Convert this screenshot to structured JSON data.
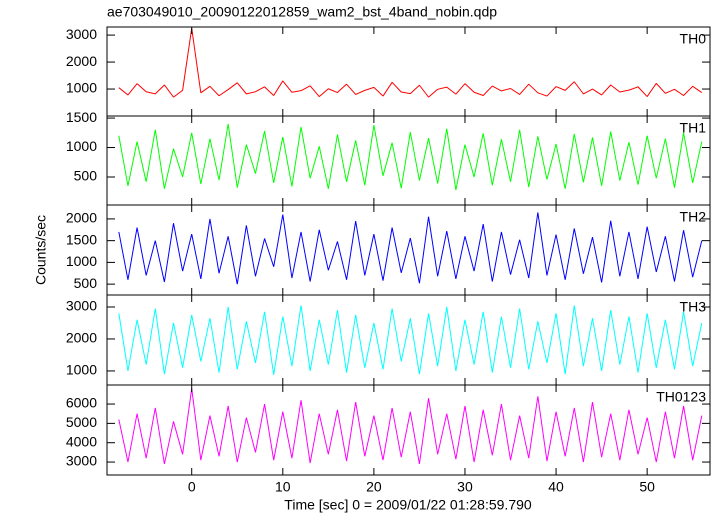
{
  "title": "ae703049010_20090122012859_wam2_bst_4band_nobin.qdp",
  "ylabel": "Counts/sec",
  "xlabel": "Time [sec] 0 = 2009/01/22 01:28:59.790",
  "chart_data": [
    {
      "type": "line",
      "x": [
        -8,
        -7,
        -6,
        -5,
        -4,
        -3,
        -2,
        -1,
        0,
        1,
        2,
        3,
        4,
        5,
        6,
        7,
        8,
        9,
        10,
        11,
        12,
        13,
        14,
        15,
        16,
        17,
        18,
        19,
        20,
        21,
        22,
        23,
        24,
        25,
        26,
        27,
        28,
        29,
        30,
        31,
        32,
        33,
        34,
        35,
        36,
        37,
        38,
        39,
        40,
        41,
        42,
        43,
        44,
        45,
        46,
        47,
        48,
        49,
        50,
        51,
        52,
        53,
        54,
        55,
        56
      ],
      "series": [
        {
          "name": "TH0",
          "color": "#ff0000",
          "values": [
            1050,
            780,
            1200,
            900,
            820,
            1150,
            700,
            950,
            3250,
            860,
            1100,
            750,
            980,
            1230,
            820,
            900,
            1080,
            760,
            1300,
            880,
            940,
            1120,
            720,
            1010,
            870,
            1180,
            800,
            950,
            1060,
            740,
            1250,
            890,
            830,
            1140,
            700,
            990,
            1070,
            810,
            1200,
            880,
            760,
            1110,
            930,
            1020,
            800,
            1180,
            860,
            740,
            1090,
            950,
            1270,
            820,
            1000,
            780,
            1150,
            890,
            960,
            1080,
            720,
            1210,
            840,
            990,
            760,
            1100,
            870
          ]
        }
      ],
      "ylim": [
        0,
        3300
      ],
      "yticks": [
        1000,
        2000,
        3000
      ]
    },
    {
      "type": "line",
      "x": [
        -8,
        -7,
        -6,
        -5,
        -4,
        -3,
        -2,
        -1,
        0,
        1,
        2,
        3,
        4,
        5,
        6,
        7,
        8,
        9,
        10,
        11,
        12,
        13,
        14,
        15,
        16,
        17,
        18,
        19,
        20,
        21,
        22,
        23,
        24,
        25,
        26,
        27,
        28,
        29,
        30,
        31,
        32,
        33,
        34,
        35,
        36,
        37,
        38,
        39,
        40,
        41,
        42,
        43,
        44,
        45,
        46,
        47,
        48,
        49,
        50,
        51,
        52,
        53,
        54,
        55,
        56
      ],
      "series": [
        {
          "name": "TH1",
          "color": "#00ff00",
          "values": [
            1200,
            350,
            1100,
            420,
            1300,
            300,
            980,
            500,
            1250,
            380,
            1150,
            450,
            1400,
            320,
            1050,
            560,
            1280,
            400,
            1180,
            340,
            1350,
            480,
            1020,
            300,
            1220,
            420,
            1120,
            360,
            1380,
            520,
            1080,
            310,
            1260,
            440,
            1160,
            390,
            1320,
            280,
            1050,
            500,
            1240,
            360,
            1140,
            420,
            1300,
            330,
            1190,
            460,
            1060,
            300,
            1230,
            410,
            1170,
            350,
            1270,
            440,
            1090,
            370,
            1200,
            480,
            1150,
            320,
            1250,
            400,
            1100
          ]
        }
      ],
      "ylim": [
        25,
        1535
      ],
      "yticks": [
        500,
        1000,
        1500
      ]
    },
    {
      "type": "line",
      "x": [
        -8,
        -7,
        -6,
        -5,
        -4,
        -3,
        -2,
        -1,
        0,
        1,
        2,
        3,
        4,
        5,
        6,
        7,
        8,
        9,
        10,
        11,
        12,
        13,
        14,
        15,
        16,
        17,
        18,
        19,
        20,
        21,
        22,
        23,
        24,
        25,
        26,
        27,
        28,
        29,
        30,
        31,
        32,
        33,
        34,
        35,
        36,
        37,
        38,
        39,
        40,
        41,
        42,
        43,
        44,
        45,
        46,
        47,
        48,
        49,
        50,
        51,
        52,
        53,
        54,
        55,
        56
      ],
      "series": [
        {
          "name": "TH2",
          "color": "#0000ff",
          "values": [
            1700,
            600,
            1800,
            700,
            1500,
            550,
            1900,
            800,
            1650,
            620,
            2000,
            750,
            1600,
            500,
            1850,
            680,
            1550,
            900,
            2100,
            640,
            1700,
            560,
            1750,
            820,
            1480,
            600,
            1950,
            700,
            1650,
            580,
            1800,
            760,
            1560,
            520,
            2050,
            680,
            1720,
            620,
            1600,
            800,
            1880,
            560,
            1700,
            720,
            1520,
            640,
            2150,
            700,
            1640,
            600,
            1780,
            740,
            1580,
            540,
            1960,
            680,
            1700,
            620,
            1820,
            780,
            1600,
            560,
            1740,
            660,
            1500
          ]
        }
      ],
      "ylim": [
        250,
        2320
      ],
      "yticks": [
        500,
        1000,
        1500,
        2000
      ]
    },
    {
      "type": "line",
      "x": [
        -8,
        -7,
        -6,
        -5,
        -4,
        -3,
        -2,
        -1,
        0,
        1,
        2,
        3,
        4,
        5,
        6,
        7,
        8,
        9,
        10,
        11,
        12,
        13,
        14,
        15,
        16,
        17,
        18,
        19,
        20,
        21,
        22,
        23,
        24,
        25,
        26,
        27,
        28,
        29,
        30,
        31,
        32,
        33,
        34,
        35,
        36,
        37,
        38,
        39,
        40,
        41,
        42,
        43,
        44,
        45,
        46,
        47,
        48,
        49,
        50,
        51,
        52,
        53,
        54,
        55,
        56
      ],
      "series": [
        {
          "name": "TH3",
          "color": "#00ffff",
          "values": [
            2800,
            1000,
            2600,
            1200,
            2950,
            900,
            2500,
            1100,
            2750,
            1300,
            2650,
            950,
            3000,
            1050,
            2550,
            1250,
            2850,
            880,
            2700,
            1150,
            3050,
            1000,
            2600,
            1200,
            2900,
            950,
            2750,
            1100,
            2500,
            1050,
            2950,
            1300,
            2650,
            900,
            2800,
            1150,
            3000,
            1000,
            2600,
            1200,
            2850,
            950,
            2700,
            1100,
            2950,
            1050,
            2550,
            1250,
            2800,
            900,
            3050,
            1150,
            2650,
            1000,
            2900,
            1200,
            2700,
            950,
            2800,
            1100,
            2600,
            1050,
            2850,
            1150,
            2500
          ]
        }
      ],
      "ylim": [
        560,
        3375
      ],
      "yticks": [
        1000,
        2000,
        3000
      ]
    },
    {
      "type": "line",
      "x": [
        -8,
        -7,
        -6,
        -5,
        -4,
        -3,
        -2,
        -1,
        0,
        1,
        2,
        3,
        4,
        5,
        6,
        7,
        8,
        9,
        10,
        11,
        12,
        13,
        14,
        15,
        16,
        17,
        18,
        19,
        20,
        21,
        22,
        23,
        24,
        25,
        26,
        27,
        28,
        29,
        30,
        31,
        32,
        33,
        34,
        35,
        36,
        37,
        38,
        39,
        40,
        41,
        42,
        43,
        44,
        45,
        46,
        47,
        48,
        49,
        50,
        51,
        52,
        53,
        54,
        55,
        56
      ],
      "series": [
        {
          "name": "TH0123",
          "color": "#ff00ff",
          "values": [
            5200,
            3000,
            5500,
            3200,
            5800,
            2900,
            5100,
            3400,
            6800,
            3100,
            5400,
            3300,
            5900,
            3000,
            5300,
            3500,
            6000,
            3100,
            5600,
            3200,
            6200,
            2950,
            5500,
            3400,
            5700,
            3050,
            6100,
            3300,
            5400,
            3100,
            5800,
            3250,
            5600,
            2900,
            6300,
            3400,
            5500,
            3150,
            5900,
            3000,
            5700,
            3350,
            6000,
            3100,
            5400,
            3200,
            6400,
            3050,
            5600,
            3300,
            5800,
            3000,
            6100,
            3250,
            5500,
            3100,
            5700,
            3400,
            5300,
            3000,
            5600,
            3200,
            5900,
            3100,
            5400
          ]
        }
      ],
      "ylim": [
        2330,
        6985
      ],
      "yticks": [
        3000,
        4000,
        5000,
        6000
      ],
      "xlim": [
        -9.3,
        56.9
      ],
      "xticks": [
        0,
        10,
        20,
        30,
        40,
        50
      ]
    }
  ]
}
